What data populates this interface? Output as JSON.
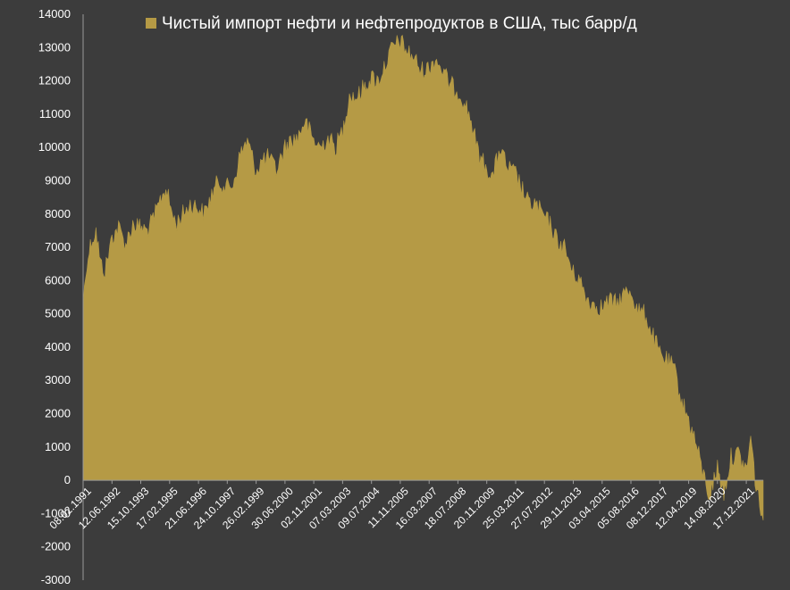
{
  "chart_data": {
    "type": "area",
    "series_name": "Чистый импорт нефти и нефтепродуктов в США, тыс барр/д",
    "legend": "top-center",
    "grid": false,
    "colors": {
      "background": "#3c3c3c",
      "area": "#b59a45",
      "axis": "#9a9a9a",
      "text": "#ffffff"
    },
    "ylim": [
      -3000,
      14000
    ],
    "yticks": [
      "-3000",
      "-2000",
      "-1000",
      "0",
      "1000",
      "2000",
      "3000",
      "4000",
      "5000",
      "6000",
      "7000",
      "8000",
      "9000",
      "10000",
      "11000",
      "12000",
      "13000",
      "14000"
    ],
    "xlim": [
      "1991-02-08",
      "2022-09-30"
    ],
    "xticks": [
      "08.02.1991",
      "12.06.1992",
      "15.10.1993",
      "17.02.1995",
      "21.06.1996",
      "24.10.1997",
      "26.02.1999",
      "30.06.2000",
      "02.11.2001",
      "07.03.2003",
      "09.07.2004",
      "11.11.2005",
      "16.03.2007",
      "18.07.2008",
      "20.11.2009",
      "25.03.2011",
      "27.07.2012",
      "29.11.2013",
      "03.04.2015",
      "05.08.2016",
      "08.12.2017",
      "12.04.2019",
      "14.08.2020",
      "17.12.2021"
    ],
    "points": [
      [
        "1991-02-08",
        5300
      ],
      [
        "1991-04-15",
        6600
      ],
      [
        "1991-07-01",
        7200
      ],
      [
        "1991-09-15",
        7500
      ],
      [
        "1991-12-01",
        6500
      ],
      [
        "1992-02-15",
        6300
      ],
      [
        "1992-06-12",
        7300
      ],
      [
        "1992-10-01",
        7600
      ],
      [
        "1993-02-01",
        7100
      ],
      [
        "1993-06-01",
        7700
      ],
      [
        "1993-10-15",
        7600
      ],
      [
        "1994-02-01",
        7500
      ],
      [
        "1994-06-01",
        7900
      ],
      [
        "1994-10-01",
        8500
      ],
      [
        "1994-12-15",
        8800
      ],
      [
        "1995-02-17",
        8300
      ],
      [
        "1995-06-01",
        7700
      ],
      [
        "1995-10-01",
        8000
      ],
      [
        "1996-02-01",
        8300
      ],
      [
        "1996-06-21",
        8200
      ],
      [
        "1996-10-01",
        8000
      ],
      [
        "1997-02-01",
        8600
      ],
      [
        "1997-06-01",
        9000
      ],
      [
        "1997-10-24",
        8800
      ],
      [
        "1998-02-01",
        8900
      ],
      [
        "1998-06-01",
        9800
      ],
      [
        "1998-10-01",
        10200
      ],
      [
        "1999-02-26",
        9300
      ],
      [
        "1999-06-01",
        9600
      ],
      [
        "1999-10-01",
        9700
      ],
      [
        "2000-02-01",
        9300
      ],
      [
        "2000-06-30",
        10000
      ],
      [
        "2000-10-01",
        10200
      ],
      [
        "2001-02-01",
        10300
      ],
      [
        "2001-06-01",
        10800
      ],
      [
        "2001-11-02",
        10200
      ],
      [
        "2002-03-01",
        10000
      ],
      [
        "2002-07-01",
        10300
      ],
      [
        "2002-11-01",
        10000
      ],
      [
        "2003-03-07",
        10500
      ],
      [
        "2003-07-01",
        11600
      ],
      [
        "2003-11-01",
        11500
      ],
      [
        "2004-03-01",
        11800
      ],
      [
        "2004-07-09",
        12100
      ],
      [
        "2004-11-01",
        12000
      ],
      [
        "2005-03-01",
        12500
      ],
      [
        "2005-07-01",
        13000
      ],
      [
        "2005-11-11",
        13200
      ],
      [
        "2006-03-01",
        12900
      ],
      [
        "2006-07-01",
        12700
      ],
      [
        "2006-11-01",
        12300
      ],
      [
        "2007-03-16",
        12400
      ],
      [
        "2007-07-01",
        12700
      ],
      [
        "2007-11-01",
        12300
      ],
      [
        "2008-03-01",
        11900
      ],
      [
        "2008-07-18",
        11700
      ],
      [
        "2008-11-01",
        11400
      ],
      [
        "2009-03-01",
        10800
      ],
      [
        "2009-07-01",
        9800
      ],
      [
        "2009-11-20",
        9400
      ],
      [
        "2010-03-01",
        9100
      ],
      [
        "2010-07-01",
        10000
      ],
      [
        "2010-11-01",
        9400
      ],
      [
        "2011-03-25",
        9200
      ],
      [
        "2011-07-01",
        8800
      ],
      [
        "2011-11-01",
        8300
      ],
      [
        "2012-03-01",
        8300
      ],
      [
        "2012-07-27",
        7900
      ],
      [
        "2012-11-01",
        7700
      ],
      [
        "2013-03-01",
        7200
      ],
      [
        "2013-07-01",
        7000
      ],
      [
        "2013-11-29",
        6200
      ],
      [
        "2014-03-01",
        6100
      ],
      [
        "2014-07-01",
        5500
      ],
      [
        "2014-11-01",
        5300
      ],
      [
        "2015-04-03",
        5200
      ],
      [
        "2015-08-01",
        5400
      ],
      [
        "2015-12-01",
        5300
      ],
      [
        "2016-04-01",
        5600
      ],
      [
        "2016-08-05",
        5700
      ],
      [
        "2016-12-01",
        5100
      ],
      [
        "2017-04-01",
        5000
      ],
      [
        "2017-08-01",
        4400
      ],
      [
        "2017-12-08",
        3800
      ],
      [
        "2018-04-01",
        3600
      ],
      [
        "2018-08-01",
        3400
      ],
      [
        "2018-12-01",
        2500
      ],
      [
        "2019-04-12",
        1800
      ],
      [
        "2019-08-01",
        1200
      ],
      [
        "2019-12-01",
        300
      ],
      [
        "2020-04-01",
        -500
      ],
      [
        "2020-08-14",
        400
      ],
      [
        "2020-12-01",
        -400
      ],
      [
        "2021-04-01",
        700
      ],
      [
        "2021-08-01",
        800
      ],
      [
        "2021-12-17",
        300
      ],
      [
        "2022-03-01",
        1300
      ],
      [
        "2022-06-01",
        -200
      ],
      [
        "2022-09-30",
        -1200
      ]
    ]
  }
}
